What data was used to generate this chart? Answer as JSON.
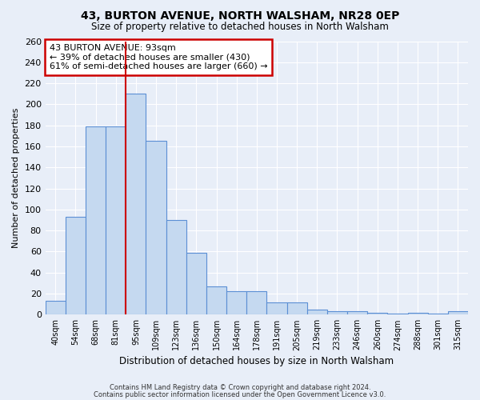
{
  "title": "43, BURTON AVENUE, NORTH WALSHAM, NR28 0EP",
  "subtitle": "Size of property relative to detached houses in North Walsham",
  "xlabel": "Distribution of detached houses by size in North Walsham",
  "ylabel": "Number of detached properties",
  "bar_color": "#c5d9f0",
  "bar_edge_color": "#5b8fd4",
  "background_color": "#e8eef8",
  "grid_color": "#ffffff",
  "bin_labels": [
    "40sqm",
    "54sqm",
    "68sqm",
    "81sqm",
    "95sqm",
    "109sqm",
    "123sqm",
    "136sqm",
    "150sqm",
    "164sqm",
    "178sqm",
    "191sqm",
    "205sqm",
    "219sqm",
    "233sqm",
    "246sqm",
    "260sqm",
    "274sqm",
    "288sqm",
    "301sqm",
    "315sqm"
  ],
  "bar_heights": [
    13,
    93,
    179,
    179,
    210,
    165,
    90,
    59,
    27,
    22,
    22,
    12,
    12,
    5,
    3,
    3,
    2,
    1,
    2,
    1,
    3
  ],
  "marker_bin_index": 4,
  "marker_line_color": "#cc0000",
  "annotation_title": "43 BURTON AVENUE: 93sqm",
  "annotation_line1": "← 39% of detached houses are smaller (430)",
  "annotation_line2": "61% of semi-detached houses are larger (660) →",
  "annotation_box_color": "#ffffff",
  "annotation_box_edge": "#cc0000",
  "ylim": [
    0,
    260
  ],
  "yticks": [
    0,
    20,
    40,
    60,
    80,
    100,
    120,
    140,
    160,
    180,
    200,
    220,
    240,
    260
  ],
  "footer1": "Contains HM Land Registry data © Crown copyright and database right 2024.",
  "footer2": "Contains public sector information licensed under the Open Government Licence v3.0."
}
